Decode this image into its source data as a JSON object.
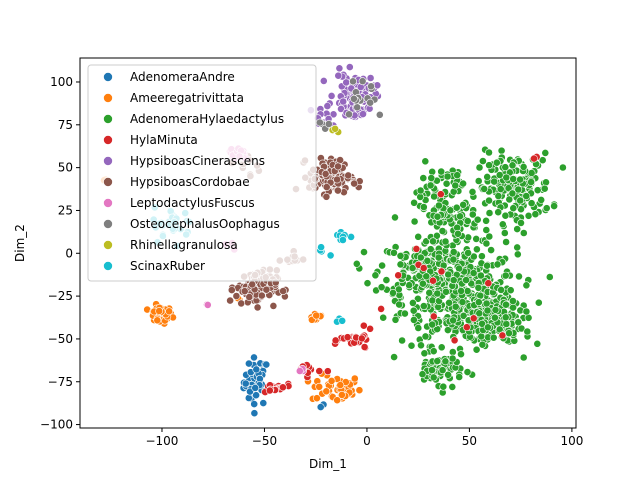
{
  "chart_data": {
    "type": "scatter",
    "xlabel": "Dim_1",
    "ylabel": "Dim_2",
    "xlim": [
      -140,
      102
    ],
    "ylim": [
      -102,
      114
    ],
    "xticks": [
      -100,
      -50,
      0,
      50,
      100
    ],
    "yticks": [
      -100,
      -75,
      -50,
      -25,
      0,
      25,
      50,
      75,
      100
    ],
    "grid": false,
    "legend_position": "top-left",
    "series": [
      {
        "name": "AdenomeraAndre",
        "color": "#1f77b4",
        "clusters": [
          {
            "cx": -54,
            "cy": -75,
            "sx": 3,
            "sy": 7,
            "n": 45
          },
          {
            "cx": -21,
            "cy": -89,
            "sx": 1,
            "sy": 1,
            "n": 2
          }
        ]
      },
      {
        "name": "Ameeregatrivittata",
        "color": "#ff7f0e",
        "clusters": [
          {
            "cx": -101,
            "cy": -36,
            "sx": 3,
            "sy": 2.5,
            "n": 45
          },
          {
            "cx": -15,
            "cy": -79,
            "sx": 6,
            "sy": 4,
            "n": 45
          },
          {
            "cx": -25,
            "cy": -37,
            "sx": 2,
            "sy": 1.5,
            "n": 12
          },
          {
            "cx": -128,
            "cy": 43,
            "sx": 1,
            "sy": 1,
            "n": 2
          },
          {
            "cx": -62,
            "cy": -27,
            "sx": 1,
            "sy": 1,
            "n": 2
          }
        ]
      },
      {
        "name": "AdenomeraHylaedactylus",
        "color": "#2ca02c",
        "clusters": [
          {
            "cx": 45,
            "cy": -25,
            "sx": 14,
            "sy": 14,
            "n": 450
          },
          {
            "cx": 30,
            "cy": -8,
            "sx": 12,
            "sy": 8,
            "n": 150
          },
          {
            "cx": 60,
            "cy": -40,
            "sx": 8,
            "sy": 6,
            "n": 140
          },
          {
            "cx": 72,
            "cy": 38,
            "sx": 9,
            "sy": 10,
            "n": 180
          },
          {
            "cx": 40,
            "cy": 20,
            "sx": 7,
            "sy": 6,
            "n": 80
          },
          {
            "cx": 35,
            "cy": 38,
            "sx": 6,
            "sy": 7,
            "n": 50
          },
          {
            "cx": 35,
            "cy": -68,
            "sx": 6,
            "sy": 4,
            "n": 70
          }
        ]
      },
      {
        "name": "HylaMinuta",
        "color": "#d62728",
        "clusters": [
          {
            "cx": -5,
            "cy": -51,
            "sx": 4,
            "sy": 3,
            "n": 24
          },
          {
            "cx": -45,
            "cy": -79,
            "sx": 4,
            "sy": 1.5,
            "n": 18
          },
          {
            "cx": -28,
            "cy": -68,
            "sx": 3,
            "sy": 2,
            "n": 10
          },
          {
            "cx": 30,
            "cy": -30,
            "sx": 20,
            "sy": 25,
            "n": 14
          },
          {
            "cx": 82,
            "cy": 56,
            "sx": 1,
            "sy": 1,
            "n": 2
          }
        ]
      },
      {
        "name": "HypsiboasCinerascens",
        "color": "#9467bd",
        "clusters": [
          {
            "cx": -6,
            "cy": 93,
            "sx": 5,
            "sy": 6,
            "n": 85
          },
          {
            "cx": -22,
            "cy": 80,
            "sx": 3,
            "sy": 3,
            "n": 12
          },
          {
            "cx": -5,
            "cy": 82,
            "sx": 3,
            "sy": 2,
            "n": 10
          }
        ]
      },
      {
        "name": "HypsiboasCordobae",
        "color": "#8c564b",
        "clusters": [
          {
            "cx": -54,
            "cy": -20,
            "sx": 5,
            "sy": 5,
            "n": 110
          },
          {
            "cx": -18,
            "cy": 45,
            "sx": 5,
            "sy": 5,
            "n": 110
          },
          {
            "cx": -37,
            "cy": -3,
            "sx": 3,
            "sy": 2,
            "n": 10
          },
          {
            "cx": -58,
            "cy": 50,
            "sx": 3,
            "sy": 5,
            "n": 10
          },
          {
            "cx": -3,
            "cy": 41,
            "sx": 2,
            "sy": 1,
            "n": 5
          }
        ]
      },
      {
        "name": "LeptodactylusFuscus",
        "color": "#e377c2",
        "clusters": [
          {
            "cx": -63,
            "cy": 58,
            "sx": 3,
            "sy": 2.5,
            "n": 18
          },
          {
            "cx": -67,
            "cy": 6,
            "sx": 2,
            "sy": 2,
            "n": 5
          },
          {
            "cx": -32,
            "cy": -68,
            "sx": 1,
            "sy": 1,
            "n": 3
          },
          {
            "cx": -78,
            "cy": -30,
            "sx": 1,
            "sy": 1,
            "n": 2
          }
        ]
      },
      {
        "name": "OsteocephalusOophagus",
        "color": "#7f7f7f",
        "clusters": [
          {
            "cx": -2,
            "cy": 93,
            "sx": 6,
            "sy": 7,
            "n": 15
          },
          {
            "cx": -22,
            "cy": 75,
            "sx": 2,
            "sy": 2,
            "n": 4
          }
        ]
      },
      {
        "name": "Rhinellagranulosa",
        "color": "#bcbd22",
        "clusters": [
          {
            "cx": -15,
            "cy": 71,
            "sx": 1,
            "sy": 1,
            "n": 3
          }
        ]
      },
      {
        "name": "ScinaxRuber",
        "color": "#17becf",
        "clusters": [
          {
            "cx": -94,
            "cy": 17,
            "sx": 5,
            "sy": 5,
            "n": 35
          },
          {
            "cx": -12,
            "cy": 10,
            "sx": 2,
            "sy": 2,
            "n": 8
          },
          {
            "cx": -22,
            "cy": 2,
            "sx": 1.5,
            "sy": 1.5,
            "n": 5
          },
          {
            "cx": -13,
            "cy": -40,
            "sx": 1,
            "sy": 1,
            "n": 3
          }
        ]
      }
    ]
  }
}
